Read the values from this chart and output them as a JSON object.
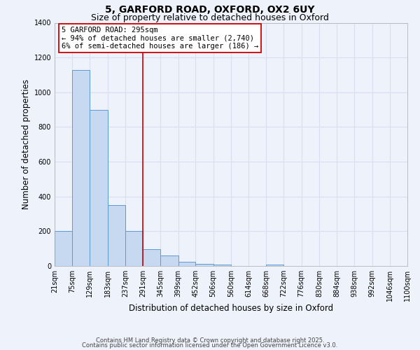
{
  "title1": "5, GARFORD ROAD, OXFORD, OX2 6UY",
  "title2": "Size of property relative to detached houses in Oxford",
  "xlabel": "Distribution of detached houses by size in Oxford",
  "ylabel": "Number of detached properties",
  "bin_edges": [
    21,
    75,
    129,
    183,
    237,
    291,
    345,
    399,
    452,
    506,
    560,
    614,
    668,
    722,
    776,
    830,
    884,
    938,
    992,
    1046,
    1100
  ],
  "bin_labels": [
    "21sqm",
    "75sqm",
    "129sqm",
    "183sqm",
    "237sqm",
    "291sqm",
    "345sqm",
    "399sqm",
    "452sqm",
    "506sqm",
    "560sqm",
    "614sqm",
    "668sqm",
    "722sqm",
    "776sqm",
    "830sqm",
    "884sqm",
    "938sqm",
    "992sqm",
    "1046sqm",
    "1100sqm"
  ],
  "counts": [
    200,
    1130,
    900,
    350,
    200,
    95,
    60,
    25,
    12,
    8,
    0,
    0,
    8,
    0,
    0,
    0,
    0,
    0,
    0,
    0
  ],
  "bar_color": "#c6d9f0",
  "bar_edge_color": "#5b9bd5",
  "vline_x": 291,
  "vline_color": "#cc0000",
  "annotation_line1": "5 GARFORD ROAD: 295sqm",
  "annotation_line2": "← 94% of detached houses are smaller (2,740)",
  "annotation_line3": "6% of semi-detached houses are larger (186) →",
  "annotation_box_color": "#cc0000",
  "ylim": [
    0,
    1400
  ],
  "yticks": [
    0,
    200,
    400,
    600,
    800,
    1000,
    1200,
    1400
  ],
  "background_color": "#eef2fb",
  "grid_color": "#d8dff0",
  "footer1": "Contains HM Land Registry data © Crown copyright and database right 2025.",
  "footer2": "Contains public sector information licensed under the Open Government Licence v3.0.",
  "title_fontsize": 10,
  "subtitle_fontsize": 9,
  "axis_label_fontsize": 8.5,
  "tick_fontsize": 7,
  "annotation_fontsize": 7.5,
  "footer_fontsize": 6
}
